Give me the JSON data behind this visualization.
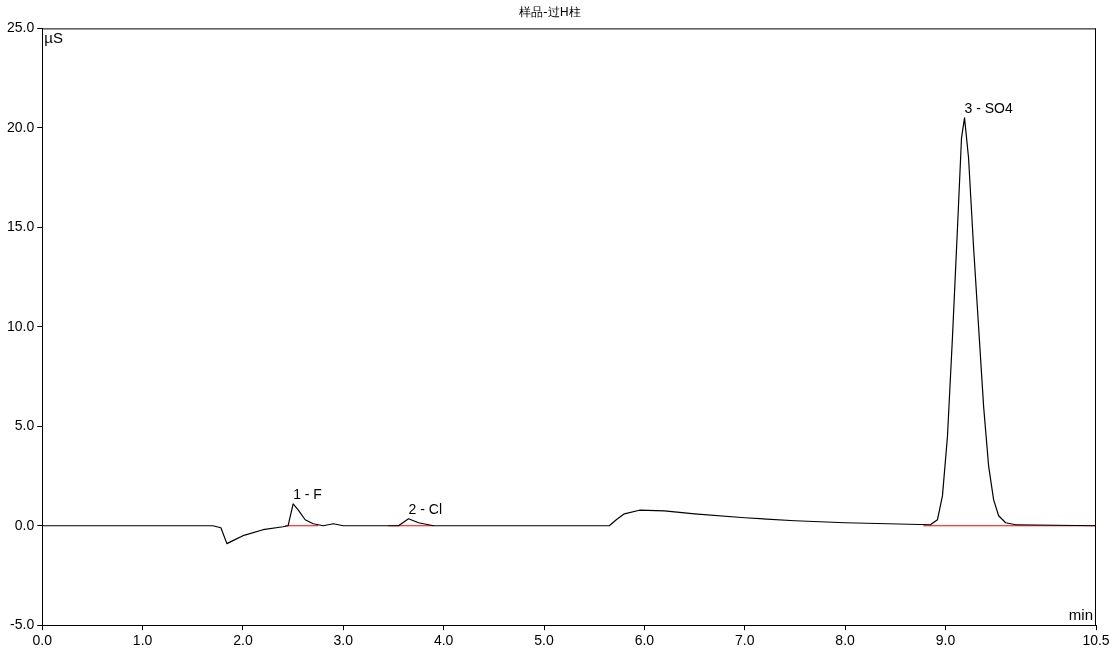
{
  "chart_data": {
    "type": "line",
    "title": "样品-过H柱",
    "xlabel": "min",
    "ylabel": "µS",
    "xlim": [
      0,
      10.5
    ],
    "ylim": [
      -5,
      25
    ],
    "xticks": [
      {
        "value": 0,
        "label": "0.0"
      },
      {
        "value": 1,
        "label": "1.0"
      },
      {
        "value": 2,
        "label": "2.0"
      },
      {
        "value": 3,
        "label": "3.0"
      },
      {
        "value": 4,
        "label": "4.0"
      },
      {
        "value": 5,
        "label": "5.0"
      },
      {
        "value": 6,
        "label": "6.0"
      },
      {
        "value": 7,
        "label": "7.0"
      },
      {
        "value": 8,
        "label": "8.0"
      },
      {
        "value": 9,
        "label": "9.0"
      },
      10.5
    ],
    "yticks": [
      {
        "value": -5,
        "label": "-5.0"
      },
      {
        "value": 0,
        "label": "0.0"
      },
      {
        "value": 5,
        "label": "5.0"
      },
      {
        "value": 10,
        "label": "10.0"
      },
      {
        "value": 15,
        "label": "15.0"
      },
      {
        "value": 20,
        "label": "20.0"
      },
      {
        "value": 25,
        "label": "25.0"
      }
    ],
    "grid": false,
    "legend": false,
    "marker": "none",
    "line_style": "solid",
    "series": [
      {
        "color": "#000000",
        "x": [
          0,
          1.7,
          1.78,
          1.84,
          1.9,
          2.0,
          2.2,
          2.4,
          2.45,
          2.5,
          2.55,
          2.62,
          2.7,
          2.8,
          2.9,
          3.0,
          3.55,
          3.65,
          3.75,
          3.9,
          5.65,
          5.72,
          5.8,
          5.95,
          6.2,
          6.5,
          7.0,
          7.5,
          8.0,
          8.85,
          8.92,
          8.97,
          9.02,
          9.07,
          9.12,
          9.16,
          9.19,
          9.23,
          9.28,
          9.33,
          9.38,
          9.43,
          9.48,
          9.53,
          9.6,
          9.7,
          10.5
        ],
        "values": [
          0,
          0,
          -0.1,
          -0.9,
          -0.75,
          -0.5,
          -0.2,
          -0.05,
          0,
          1.1,
          0.8,
          0.3,
          0.1,
          0,
          0.1,
          0,
          0,
          0.35,
          0.15,
          0,
          0,
          0.3,
          0.6,
          0.78,
          0.75,
          0.6,
          0.4,
          0.25,
          0.15,
          0.05,
          0.3,
          1.5,
          4.5,
          9.5,
          15,
          19.5,
          20.5,
          18.5,
          14,
          10,
          6,
          3,
          1.3,
          0.5,
          0.15,
          0.05,
          0
        ]
      },
      {
        "color": "#ff0000",
        "x": [
          2.42,
          2.75
        ],
        "values": [
          0,
          0
        ]
      },
      {
        "color": "#ff0000",
        "x": [
          3.45,
          3.9
        ],
        "values": [
          0,
          0
        ]
      },
      {
        "color": "#ff0000",
        "x": [
          8.78,
          10.5
        ],
        "values": [
          0,
          0
        ]
      }
    ],
    "annotations": [
      {
        "text": "1 - F",
        "x": 2.5,
        "y": 1.1
      },
      {
        "text": "2 - Cl",
        "x": 3.65,
        "y": 0.35
      },
      {
        "text": "3 - SO4",
        "x": 9.19,
        "y": 20.5
      }
    ]
  }
}
